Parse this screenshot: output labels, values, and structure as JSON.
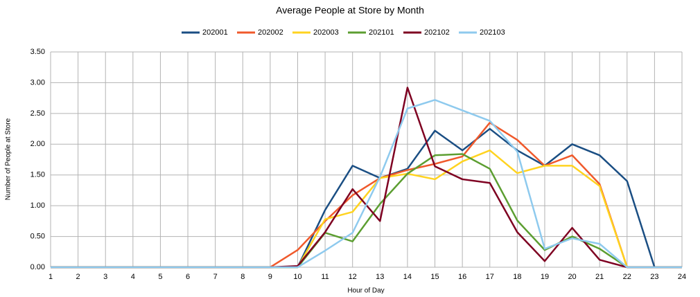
{
  "chart_data": {
    "type": "line",
    "title": "Average People at Store by Month",
    "x_label": "Hour of Day",
    "y_label": "Number of People at Store",
    "x": [
      1,
      2,
      3,
      4,
      5,
      6,
      7,
      8,
      9,
      10,
      11,
      12,
      13,
      14,
      15,
      16,
      17,
      18,
      19,
      20,
      21,
      22,
      23,
      24
    ],
    "series": [
      {
        "name": "202001",
        "color": "#1a4e83",
        "values": [
          0,
          0,
          0,
          0,
          0,
          0,
          0,
          0,
          0,
          0,
          0.93,
          1.65,
          1.45,
          1.6,
          2.22,
          1.9,
          2.25,
          1.9,
          1.65,
          2.0,
          1.82,
          1.4,
          0,
          0
        ]
      },
      {
        "name": "202002",
        "color": "#f0592b",
        "values": [
          0,
          0,
          0,
          0,
          0,
          0,
          0,
          0,
          0,
          0.28,
          0.75,
          1.17,
          1.45,
          1.58,
          1.68,
          1.8,
          2.35,
          2.07,
          1.65,
          1.82,
          1.35,
          0,
          0,
          0
        ]
      },
      {
        "name": "202003",
        "color": "#ffd320",
        "values": [
          0,
          0,
          0,
          0,
          0,
          0,
          0,
          0,
          0,
          0,
          0.78,
          0.9,
          1.45,
          1.52,
          1.43,
          1.72,
          1.9,
          1.53,
          1.65,
          1.65,
          1.32,
          0,
          0,
          0
        ]
      },
      {
        "name": "202101",
        "color": "#5c9e31",
        "values": [
          0,
          0,
          0,
          0,
          0,
          0,
          0,
          0,
          0,
          0,
          0.56,
          0.42,
          1.03,
          1.52,
          1.82,
          1.84,
          1.6,
          0.76,
          0.28,
          0.5,
          0.3,
          0,
          0,
          0
        ]
      },
      {
        "name": "202102",
        "color": "#7e0021",
        "values": [
          0,
          0,
          0,
          0,
          0,
          0,
          0,
          0,
          0,
          0.02,
          0.57,
          1.27,
          0.75,
          2.92,
          1.64,
          1.43,
          1.37,
          0.57,
          0.1,
          0.64,
          0.12,
          0,
          0,
          0
        ]
      },
      {
        "name": "202103",
        "color": "#8ecaee",
        "values": [
          0,
          0,
          0,
          0,
          0,
          0,
          0,
          0,
          0,
          0,
          0.27,
          0.56,
          1.47,
          2.58,
          2.72,
          2.55,
          2.38,
          1.88,
          0.3,
          0.47,
          0.38,
          0,
          0,
          0
        ]
      }
    ],
    "xlim": [
      1,
      24
    ],
    "xticks": [
      1,
      2,
      3,
      4,
      5,
      6,
      7,
      8,
      9,
      10,
      11,
      12,
      13,
      14,
      15,
      16,
      17,
      18,
      19,
      20,
      21,
      22,
      23,
      24
    ],
    "ylim": [
      0,
      3.5
    ],
    "yticks": [
      {
        "value": 0,
        "label": "0.00"
      },
      {
        "value": 0.5,
        "label": "0.50"
      },
      {
        "value": 1,
        "label": "1.00"
      },
      {
        "value": 1.5,
        "label": "1.50"
      },
      {
        "value": 2,
        "label": "2.00"
      },
      {
        "value": 2.5,
        "label": "2.50"
      },
      {
        "value": 3,
        "label": "3.00"
      },
      {
        "value": 3.5,
        "label": "3.50"
      }
    ],
    "grid": true,
    "legend": "top"
  }
}
